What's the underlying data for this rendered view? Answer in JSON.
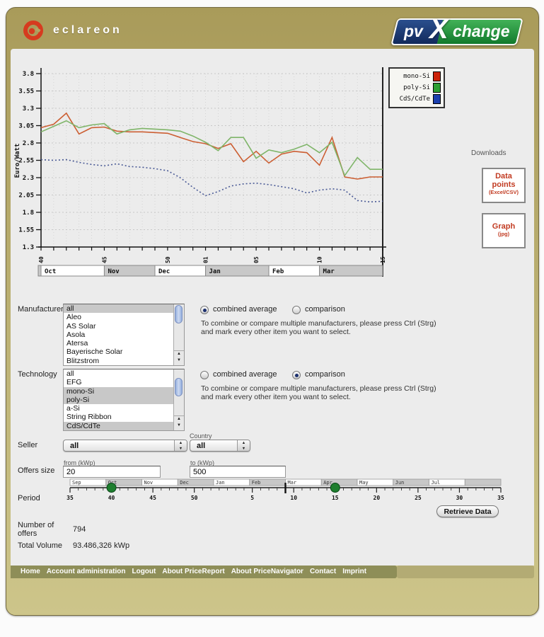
{
  "header": {
    "brand": "eclareon",
    "logo_pv": "pv",
    "logo_x": "X",
    "logo_change": "change"
  },
  "chart": {
    "ylabel": "Euro/Watt",
    "legend": [
      {
        "label": "mono-Si",
        "color": "#cc2208"
      },
      {
        "label": "poly-Si",
        "color": "#2c9f32"
      },
      {
        "label": "CdS/CdTe",
        "color": "#1b3fae"
      }
    ]
  },
  "chart_data": {
    "type": "line",
    "ylabel": "Euro/Watt",
    "ylim": [
      1.3,
      3.8
    ],
    "ytick_step": 0.25,
    "grid": true,
    "legend_position": "top-right",
    "x_weeks": [
      "40",
      "41",
      "42",
      "43",
      "44",
      "45",
      "46",
      "47",
      "48",
      "49",
      "50",
      "51",
      "52",
      "01",
      "02",
      "03",
      "04",
      "05",
      "06",
      "07",
      "08",
      "09",
      "10",
      "11",
      "12",
      "13",
      "14",
      "15"
    ],
    "x_labeled_ticks": [
      "40",
      "45",
      "50",
      "01",
      "05",
      "10",
      "15"
    ],
    "months": [
      {
        "label": "Oct",
        "weeks": 5
      },
      {
        "label": "Nov",
        "weeks": 4
      },
      {
        "label": "Dec",
        "weeks": 4
      },
      {
        "label": "Jan",
        "weeks": 5
      },
      {
        "label": "Feb",
        "weeks": 4
      },
      {
        "label": "Mar",
        "weeks": 6
      }
    ],
    "series": [
      {
        "name": "mono-Si",
        "color": "#cc5f33",
        "dash": "",
        "values": [
          3.02,
          3.07,
          3.23,
          2.93,
          3.02,
          3.03,
          2.97,
          2.96,
          2.96,
          2.95,
          2.94,
          2.88,
          2.82,
          2.79,
          2.72,
          2.79,
          2.53,
          2.68,
          2.51,
          2.64,
          2.68,
          2.66,
          2.48,
          2.88,
          2.31,
          2.28,
          2.31,
          2.31
        ]
      },
      {
        "name": "poly-Si",
        "color": "#7fb569",
        "dash": "",
        "values": [
          2.96,
          3.04,
          3.12,
          3.02,
          3.06,
          3.08,
          2.93,
          2.99,
          3.01,
          3.0,
          2.99,
          2.97,
          2.9,
          2.81,
          2.69,
          2.88,
          2.88,
          2.58,
          2.7,
          2.66,
          2.71,
          2.78,
          2.66,
          2.81,
          2.33,
          2.59,
          2.42,
          2.42
        ]
      },
      {
        "name": "CdS/CdTe",
        "color": "#4a5a96",
        "dash": "2 3",
        "values": [
          2.56,
          2.55,
          2.56,
          2.52,
          2.49,
          2.47,
          2.5,
          2.46,
          2.45,
          2.43,
          2.4,
          2.3,
          2.16,
          2.04,
          2.1,
          2.18,
          2.21,
          2.22,
          2.2,
          2.17,
          2.14,
          2.08,
          2.12,
          2.14,
          2.12,
          1.97,
          1.95,
          1.96
        ]
      }
    ]
  },
  "downloads": {
    "title": "Downloads",
    "box1_line1": "Data",
    "box1_line2": "points",
    "box1_sub": "(Excel/CSV)",
    "box2_line1": "Graph",
    "box2_sub": "(jpg)"
  },
  "manufacturer": {
    "label": "Manufacturer",
    "options": [
      "all",
      "Aleo",
      "AS Solar",
      "Asola",
      "Atersa",
      "Bayerische Solar",
      "Blitzstrom"
    ],
    "selected": [
      "all"
    ],
    "mode": "combined",
    "combined_label": "combined average",
    "comparison_label": "comparison",
    "help_line1": "To combine or compare multiple manufacturers, please press Ctrl (Strg)",
    "help_line2": "and mark every other item you want to select."
  },
  "technology": {
    "label": "Technology",
    "options": [
      "all",
      "EFG",
      "mono-Si",
      "poly-Si",
      "a-Si",
      "String Ribbon",
      "CdS/CdTe"
    ],
    "selected": [
      "mono-Si",
      "poly-Si",
      "CdS/CdTe"
    ],
    "mode": "comparison",
    "combined_label": "combined average",
    "comparison_label": "comparison",
    "help_line1": "To combine or compare multiple manufacturers, please press Ctrl (Strg)",
    "help_line2": "and mark every other item you want to select."
  },
  "seller": {
    "label": "Seller",
    "value": "all",
    "country_label": "Country",
    "country_value": "all"
  },
  "offers": {
    "label": "Offers size",
    "from_label": "from (kWp)",
    "from_value": "20",
    "to_label": "to (kWp)",
    "to_value": "500"
  },
  "period": {
    "label": "Period",
    "months": [
      "Sep",
      "Oct",
      "Nov",
      "Dec",
      "Jan",
      "Feb",
      "Mar",
      "Apr",
      "May",
      "Jun",
      "Jul",
      ""
    ],
    "tick_labels": [
      "35",
      "40",
      "45",
      "50",
      "5",
      "10",
      "15",
      "20",
      "25",
      "30",
      "35"
    ],
    "tick_positions": [
      0,
      5,
      10,
      15,
      22,
      27,
      32,
      37,
      42,
      47,
      52
    ],
    "total_weeks": 52,
    "handles": [
      5,
      32
    ],
    "current_marker": 26
  },
  "retrieve_label": "Retrieve Data",
  "stats": {
    "offers_label_line1": "Number of",
    "offers_label_line2": "offers",
    "offers_value": "794",
    "volume_label": "Total Volume",
    "volume_value": "93.486,326 kWp"
  },
  "footer_nav": [
    "Home",
    "Account administration",
    "Logout",
    "About PriceReport",
    "About PriceNavigator",
    "Contact",
    "Imprint"
  ]
}
